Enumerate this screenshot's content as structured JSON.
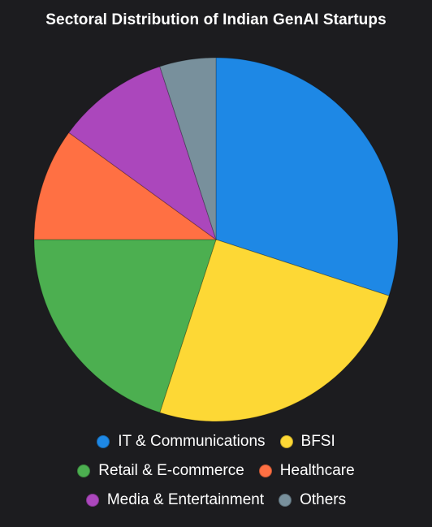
{
  "chart_data": {
    "type": "pie",
    "title": "Sectoral Distribution of Indian GenAI Startups",
    "categories": [
      "IT & Communications",
      "BFSI",
      "Retail & E-commerce",
      "Healthcare",
      "Media & Entertainment",
      "Others"
    ],
    "values": [
      30,
      25,
      20,
      10,
      10,
      5
    ],
    "colors": [
      "#1e88e5",
      "#fdd835",
      "#4caf50",
      "#ff7043",
      "#ab47bc",
      "#78909c"
    ],
    "legend_placement": "bottom",
    "start_angle": "12 o'clock, clockwise"
  }
}
